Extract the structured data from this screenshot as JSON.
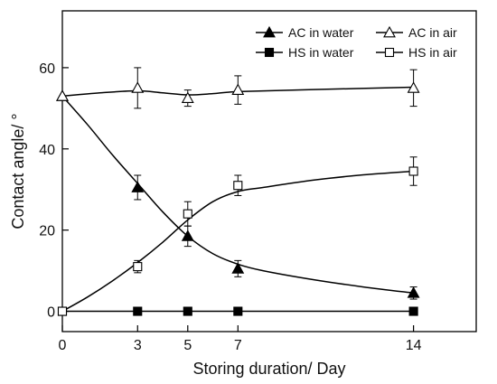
{
  "chart_data": {
    "type": "line",
    "xlabel": "Storing duration/ Day",
    "ylabel": "Contact angle/ °",
    "xlim": [
      0,
      16.5
    ],
    "ylim": [
      -5,
      74
    ],
    "xticks": [
      0,
      3,
      5,
      7,
      14
    ],
    "yticks": [
      0,
      20,
      40,
      60
    ],
    "grid": false,
    "legend_position": "top",
    "series": [
      {
        "name": "AC in water",
        "marker": "filled-triangle",
        "points": [
          {
            "x": 0,
            "y": 53,
            "err": 0
          },
          {
            "x": 3,
            "y": 30.5,
            "err": 3
          },
          {
            "x": 5,
            "y": 18.5,
            "err": 2.5
          },
          {
            "x": 7,
            "y": 10.5,
            "err": 2
          },
          {
            "x": 14,
            "y": 4.5,
            "err": 1.5
          }
        ],
        "curve": [
          [
            0,
            53
          ],
          [
            1,
            46
          ],
          [
            2,
            38.5
          ],
          [
            3,
            31.5
          ],
          [
            4,
            24.5
          ],
          [
            5,
            18.5
          ],
          [
            6,
            14.2
          ],
          [
            7,
            11.6
          ],
          [
            8,
            10
          ],
          [
            10,
            7.8
          ],
          [
            12,
            6
          ],
          [
            14,
            4.5
          ]
        ]
      },
      {
        "name": "AC in air",
        "marker": "open-triangle",
        "points": [
          {
            "x": 0,
            "y": 53,
            "err": 0
          },
          {
            "x": 3,
            "y": 55,
            "err": 5
          },
          {
            "x": 5,
            "y": 52.5,
            "err": 2
          },
          {
            "x": 7,
            "y": 54.5,
            "err": 3.5
          },
          {
            "x": 14,
            "y": 55,
            "err": 4.5
          }
        ],
        "curve": [
          [
            0,
            53
          ],
          [
            1.5,
            53.8
          ],
          [
            3,
            54.3
          ],
          [
            4,
            53.8
          ],
          [
            5,
            53.3
          ],
          [
            6,
            53.6
          ],
          [
            7,
            54.1
          ],
          [
            10,
            54.6
          ],
          [
            14,
            55.2
          ]
        ]
      },
      {
        "name": "HS in water",
        "marker": "filled-square",
        "points": [
          {
            "x": 0,
            "y": 0,
            "err": 0
          },
          {
            "x": 3,
            "y": 0,
            "err": 0
          },
          {
            "x": 5,
            "y": 0,
            "err": 0
          },
          {
            "x": 7,
            "y": 0,
            "err": 0
          },
          {
            "x": 14,
            "y": 0,
            "err": 0
          }
        ],
        "curve": [
          [
            0,
            0
          ],
          [
            14,
            0
          ]
        ]
      },
      {
        "name": "HS in air",
        "marker": "open-square",
        "points": [
          {
            "x": 0,
            "y": 0,
            "err": 0
          },
          {
            "x": 3,
            "y": 11,
            "err": 1.5
          },
          {
            "x": 5,
            "y": 24,
            "err": 3
          },
          {
            "x": 7,
            "y": 31,
            "err": 2.5
          },
          {
            "x": 14,
            "y": 34.5,
            "err": 3.5
          }
        ],
        "curve": [
          [
            0,
            0
          ],
          [
            1,
            3.5
          ],
          [
            2,
            7.5
          ],
          [
            3,
            12
          ],
          [
            4,
            17
          ],
          [
            5,
            22.5
          ],
          [
            6,
            27
          ],
          [
            7,
            29.5
          ],
          [
            8,
            30.5
          ],
          [
            10,
            32.3
          ],
          [
            12,
            33.6
          ],
          [
            14,
            34.5
          ]
        ]
      }
    ]
  }
}
